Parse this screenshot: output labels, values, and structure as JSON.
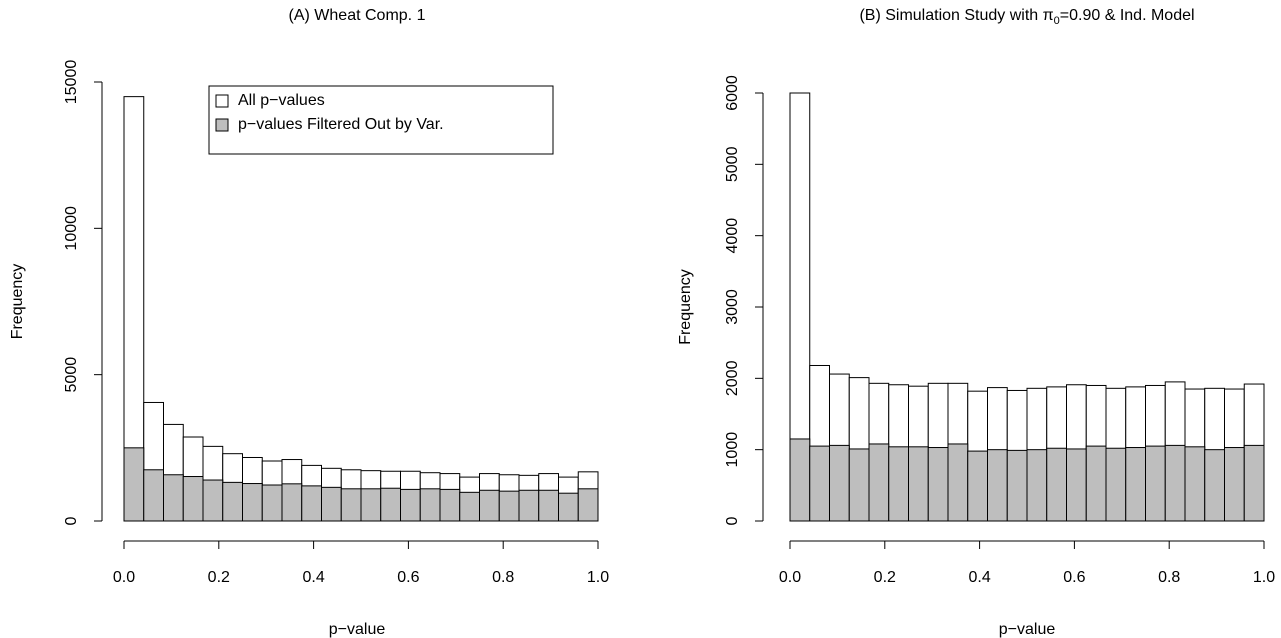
{
  "chart_data": [
    {
      "type": "histogram",
      "title": "(A) Wheat Comp. 1",
      "x_label": "p−value",
      "y_label": "Frequency",
      "bins": [
        0,
        0.041667,
        0.083333,
        0.125,
        0.166667,
        0.208333,
        0.25,
        0.291667,
        0.333333,
        0.375,
        0.416667,
        0.458333,
        0.5,
        0.541667,
        0.583333,
        0.625,
        0.666667,
        0.708333,
        0.75,
        0.791667,
        0.833333,
        0.875,
        0.916667,
        0.958333,
        1
      ],
      "series": [
        {
          "name": "All p−values",
          "color": "#ffffff",
          "values": [
            14500,
            4050,
            3300,
            2870,
            2550,
            2300,
            2170,
            2050,
            2100,
            1900,
            1800,
            1750,
            1720,
            1700,
            1700,
            1650,
            1620,
            1500,
            1620,
            1580,
            1560,
            1620,
            1500,
            1680
          ]
        },
        {
          "name": "p−values Filtered Out by Var.",
          "color": "#bebebe",
          "values": [
            2500,
            1750,
            1580,
            1520,
            1400,
            1320,
            1280,
            1230,
            1270,
            1200,
            1150,
            1100,
            1100,
            1120,
            1080,
            1100,
            1080,
            980,
            1050,
            1020,
            1050,
            1050,
            950,
            1100
          ]
        }
      ],
      "xlim": [
        0,
        1
      ],
      "xticks": [
        {
          "value": 0,
          "label": "0.0"
        },
        0.2,
        0.4,
        0.6,
        0.8,
        {
          "value": 1,
          "label": "1.0"
        }
      ],
      "ylim": [
        0,
        15000
      ],
      "yticks": [
        0,
        5000,
        10000,
        15000
      ],
      "legend": "top"
    },
    {
      "type": "histogram",
      "title": {
        "prefix": "(B) Simulation Study with π",
        "subscript": "0",
        "suffix": "=0.90 & Ind. Model"
      },
      "x_label": "p−value",
      "y_label": "Frequency",
      "bins": [
        0,
        0.041667,
        0.083333,
        0.125,
        0.166667,
        0.208333,
        0.25,
        0.291667,
        0.333333,
        0.375,
        0.416667,
        0.458333,
        0.5,
        0.541667,
        0.583333,
        0.625,
        0.666667,
        0.708333,
        0.75,
        0.791667,
        0.833333,
        0.875,
        0.916667,
        0.958333,
        1
      ],
      "series": [
        {
          "color": "#ffffff",
          "values": [
            6000,
            2180,
            2060,
            2010,
            1930,
            1910,
            1890,
            1930,
            1930,
            1820,
            1870,
            1830,
            1860,
            1880,
            1910,
            1900,
            1860,
            1880,
            1900,
            1950,
            1850,
            1860,
            1850,
            1920
          ]
        },
        {
          "color": "#bebebe",
          "values": [
            1150,
            1050,
            1060,
            1010,
            1080,
            1040,
            1040,
            1030,
            1080,
            980,
            1000,
            990,
            1000,
            1020,
            1010,
            1050,
            1020,
            1030,
            1050,
            1060,
            1040,
            1000,
            1030,
            1060
          ]
        }
      ],
      "xlim": [
        0,
        1
      ],
      "xticks": [
        {
          "value": 0,
          "label": "0.0"
        },
        0.2,
        0.4,
        0.6,
        0.8,
        {
          "value": 1,
          "label": "1.0"
        }
      ],
      "ylim": [
        0,
        6000
      ],
      "yticks": [
        0,
        1000,
        2000,
        3000,
        4000,
        5000,
        6000
      ]
    }
  ]
}
